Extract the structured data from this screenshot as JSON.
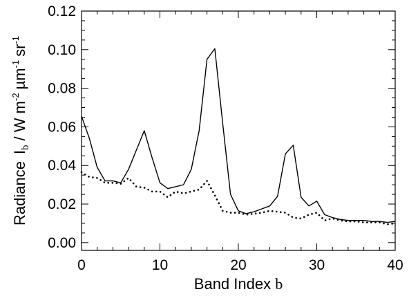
{
  "chart_data": {
    "type": "line",
    "title": "",
    "xlabel": "Band Index",
    "xlabel_symbol": "b",
    "ylabel": {
      "prefix": "Radiance",
      "symbol": "I",
      "symbol_sub": "b",
      "unit_w": "/ W m",
      "unit_w_exp": "-2",
      "unit_um": "µm",
      "unit_um_exp": "-1",
      "unit_sr": "sr",
      "unit_sr_exp": "-1"
    },
    "xlim": [
      0,
      40
    ],
    "ylim": [
      -0.004,
      0.12
    ],
    "xticks": [
      0,
      10,
      20,
      30,
      40
    ],
    "xtick_labels": [
      "0",
      "10",
      "20",
      "30",
      "40"
    ],
    "yticks": [
      0.0,
      0.02,
      0.04,
      0.06,
      0.08,
      0.1,
      0.12
    ],
    "ytick_labels": [
      "0.00",
      "0.02",
      "0.04",
      "0.06",
      "0.08",
      "0.10",
      "0.12"
    ],
    "grid": false,
    "legend": "none",
    "series": [
      {
        "style": "solid",
        "color": "#000000",
        "x": [
          0,
          1,
          2,
          3,
          4,
          5,
          6,
          7,
          8,
          9,
          10,
          11,
          12,
          13,
          14,
          15,
          16,
          17,
          18,
          19,
          20,
          21,
          22,
          23,
          24,
          25,
          26,
          27,
          28,
          29,
          30,
          31,
          32,
          33,
          34,
          35,
          36,
          37,
          38,
          39,
          40
        ],
        "values": [
          0.0655,
          0.054,
          0.039,
          0.032,
          0.032,
          0.031,
          0.038,
          0.048,
          0.058,
          0.044,
          0.031,
          0.028,
          0.029,
          0.03,
          0.038,
          0.058,
          0.095,
          0.1005,
          0.062,
          0.025,
          0.0165,
          0.015,
          0.016,
          0.0175,
          0.019,
          0.024,
          0.046,
          0.0505,
          0.0235,
          0.019,
          0.0215,
          0.0145,
          0.013,
          0.012,
          0.0115,
          0.0115,
          0.0115,
          0.011,
          0.011,
          0.0105,
          0.011
        ]
      },
      {
        "style": "dotted",
        "color": "#000000",
        "x": [
          0,
          1,
          2,
          3,
          4,
          5,
          6,
          7,
          8,
          9,
          10,
          11,
          12,
          13,
          14,
          15,
          16,
          17,
          18,
          19,
          20,
          21,
          22,
          23,
          24,
          25,
          26,
          27,
          28,
          29,
          30,
          31,
          32,
          33,
          34,
          35,
          36,
          37,
          38,
          39,
          40
        ],
        "values": [
          0.0365,
          0.034,
          0.0335,
          0.031,
          0.031,
          0.0305,
          0.0335,
          0.029,
          0.0285,
          0.0265,
          0.0265,
          0.0235,
          0.0265,
          0.0255,
          0.0265,
          0.0275,
          0.032,
          0.0245,
          0.0165,
          0.0155,
          0.0155,
          0.0145,
          0.015,
          0.0155,
          0.0165,
          0.016,
          0.0155,
          0.013,
          0.0125,
          0.0145,
          0.0155,
          0.0115,
          0.0125,
          0.0115,
          0.011,
          0.011,
          0.0105,
          0.0105,
          0.0105,
          0.0095,
          0.01
        ]
      }
    ]
  }
}
